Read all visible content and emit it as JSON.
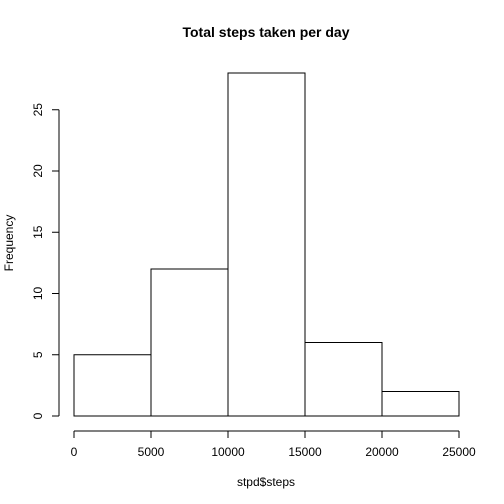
{
  "chart_data": {
    "type": "bar",
    "title": "Total steps taken per day",
    "xlabel": "stpd$steps",
    "ylabel": "Frequency",
    "bins": [
      {
        "from": 0,
        "to": 5000,
        "count": 5
      },
      {
        "from": 5000,
        "to": 10000,
        "count": 12
      },
      {
        "from": 10000,
        "to": 15000,
        "count": 28
      },
      {
        "from": 15000,
        "to": 20000,
        "count": 6
      },
      {
        "from": 20000,
        "to": 25000,
        "count": 2
      }
    ],
    "xlim": [
      0,
      25000
    ],
    "ylim": [
      0,
      28
    ],
    "xticks": [
      0,
      5000,
      10000,
      15000,
      20000,
      25000
    ],
    "yticks": [
      0,
      5,
      10,
      15,
      20,
      25
    ],
    "grid": false,
    "colors": {
      "bar_fill": "#ffffff",
      "bar_stroke": "#000000"
    }
  }
}
